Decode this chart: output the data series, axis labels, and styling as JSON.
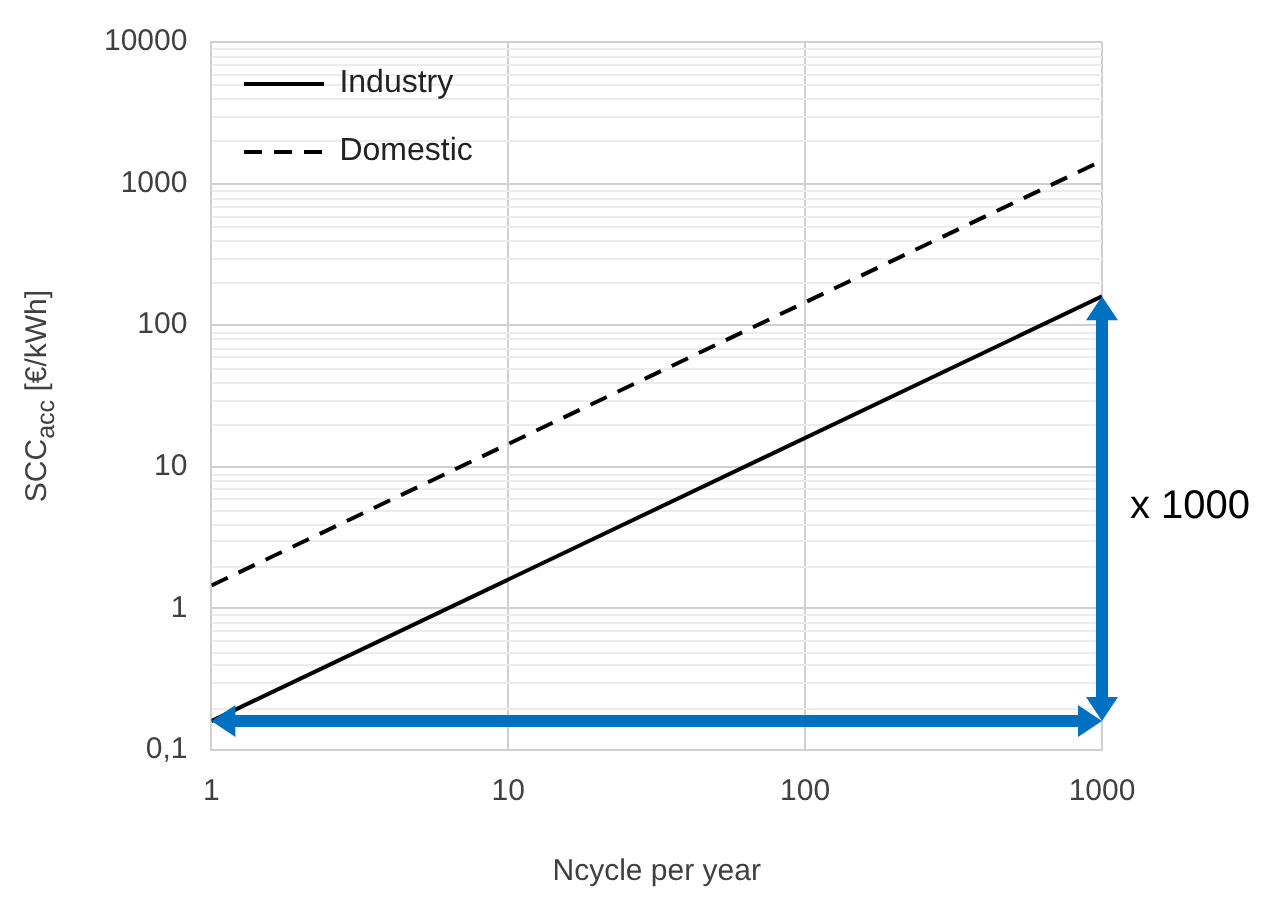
{
  "chart_data": {
    "type": "line",
    "xlabel": "Ncycle per year",
    "ylabel": "SCC$_{acc}$ [€/kWh]",
    "x": [
      1,
      1000
    ],
    "series": [
      {
        "name": "Industry",
        "color": "#000000",
        "values": [
          0.16,
          160
        ],
        "line_style": "solid"
      },
      {
        "name": "Domestic",
        "color": "#000000",
        "values": [
          1.45,
          1450
        ],
        "line_style": "dashed"
      }
    ],
    "log": "xy",
    "xlim": [
      1,
      1000
    ],
    "xticks": [
      1,
      10,
      100,
      1000
    ],
    "ylim": [
      0.1,
      10000
    ],
    "yticks": [
      {
        "value": 0.1,
        "label": "0,1"
      },
      1,
      10,
      100,
      1000,
      10000
    ],
    "grid": true,
    "legend": "top left",
    "marker": "none",
    "annotations": [
      "x 1000"
    ]
  }
}
